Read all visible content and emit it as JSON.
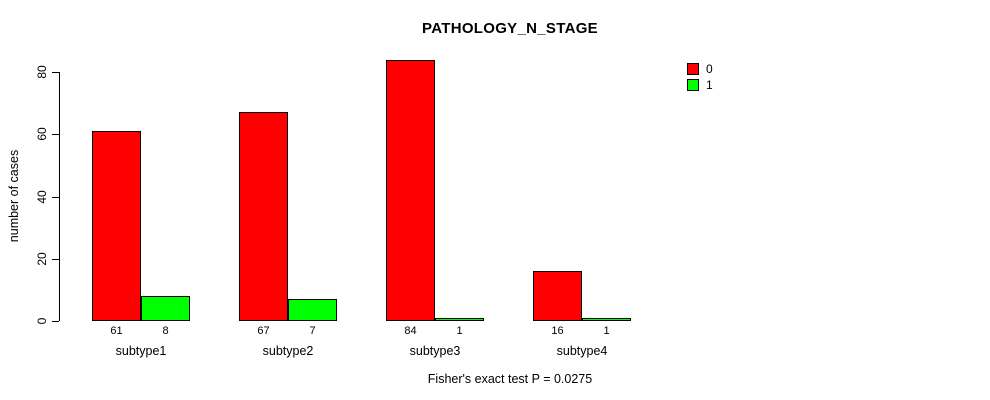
{
  "chart_data": {
    "type": "bar",
    "title": "PATHOLOGY_N_STAGE",
    "categories": [
      "subtype1",
      "subtype2",
      "subtype3",
      "subtype4"
    ],
    "series": [
      {
        "name": "0",
        "color": "#FF0000",
        "values": [
          61,
          67,
          84,
          16
        ]
      },
      {
        "name": "1",
        "color": "#00FF00",
        "values": [
          8,
          7,
          1,
          1
        ]
      }
    ],
    "xlabel": "",
    "ylabel": "number of cases",
    "ylim": [
      0,
      80
    ],
    "yticks": [
      0,
      20,
      40,
      60,
      80
    ],
    "bar_value_labels": true,
    "grid": false,
    "legend_position": "top-right",
    "annotation": "Fisher's exact test P = 0.0275"
  }
}
